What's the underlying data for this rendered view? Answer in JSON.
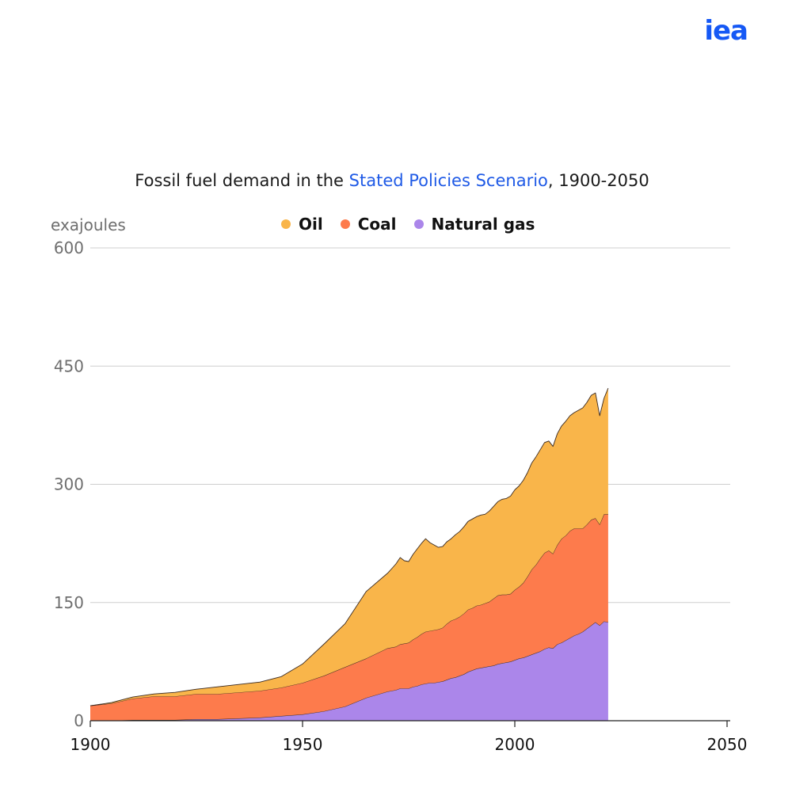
{
  "logo": {
    "text": "iea"
  },
  "header": {
    "title_prefix": "Fossil fuel demand in the ",
    "title_highlight": "Stated Policies Scenario",
    "title_suffix": ", 1900-2050"
  },
  "colors": {
    "oil": "#f9b54a",
    "coal": "#fd7b4c",
    "natural_gas": "#ab86ea",
    "highlight": "#1f5ae6",
    "logo": "#1558f5"
  },
  "chart_data": {
    "type": "area",
    "stacked": true,
    "title": "Fossil fuel demand in the Stated Policies Scenario, 1900-2050",
    "ylabel": "exajoules",
    "xlim": [
      1900,
      2050
    ],
    "ylim": [
      0,
      600
    ],
    "y_ticks": [
      0,
      150,
      300,
      450,
      600
    ],
    "x_ticks": [
      1900,
      1950,
      2000,
      2050
    ],
    "legend_position": "top-center",
    "grid": "horizontal",
    "x": [
      1900,
      1905,
      1910,
      1915,
      1920,
      1925,
      1930,
      1935,
      1940,
      1945,
      1950,
      1955,
      1960,
      1965,
      1970,
      1971,
      1972,
      1973,
      1974,
      1975,
      1976,
      1977,
      1978,
      1979,
      1980,
      1981,
      1982,
      1983,
      1984,
      1985,
      1986,
      1987,
      1988,
      1989,
      1990,
      1991,
      1992,
      1993,
      1994,
      1995,
      1996,
      1997,
      1998,
      1999,
      2000,
      2001,
      2002,
      2003,
      2004,
      2005,
      2006,
      2007,
      2008,
      2009,
      2010,
      2011,
      2012,
      2013,
      2014,
      2015,
      2016,
      2017,
      2018,
      2019,
      2020,
      2021,
      2022
    ],
    "series": [
      {
        "name": "Natural gas",
        "values": [
          0,
          0,
          1,
          1,
          1,
          2,
          2,
          3,
          4,
          6,
          8,
          12,
          18,
          29,
          37,
          38,
          39,
          41,
          41,
          41,
          43,
          44,
          46,
          47,
          48,
          48,
          49,
          50,
          52,
          54,
          55,
          57,
          59,
          62,
          64,
          66,
          67,
          68,
          69,
          70,
          72,
          73,
          74,
          75,
          77,
          79,
          80,
          82,
          84,
          86,
          88,
          91,
          93,
          92,
          97,
          99,
          102,
          105,
          108,
          110,
          113,
          117,
          121,
          125,
          121,
          126,
          125
        ]
      },
      {
        "name": "Coal",
        "values": [
          19,
          22,
          27,
          30,
          30,
          32,
          32,
          33,
          34,
          36,
          40,
          45,
          50,
          50,
          55,
          55,
          55,
          56,
          57,
          58,
          60,
          62,
          64,
          66,
          66,
          67,
          67,
          68,
          71,
          73,
          74,
          75,
          77,
          79,
          79,
          80,
          80,
          81,
          82,
          85,
          87,
          87,
          86,
          86,
          89,
          91,
          95,
          101,
          108,
          112,
          118,
          122,
          123,
          120,
          126,
          132,
          133,
          136,
          136,
          134,
          131,
          132,
          134,
          132,
          128,
          136,
          137
        ]
      },
      {
        "name": "Oil",
        "values": [
          0,
          1,
          2,
          3,
          5,
          6,
          9,
          10,
          11,
          14,
          24,
          40,
          55,
          85,
          95,
          100,
          105,
          110,
          105,
          103,
          108,
          112,
          115,
          118,
          112,
          108,
          104,
          103,
          104,
          104,
          107,
          108,
          110,
          112,
          113,
          113,
          114,
          113,
          115,
          117,
          119,
          121,
          122,
          124,
          127,
          128,
          130,
          132,
          135,
          137,
          138,
          140,
          139,
          136,
          141,
          143,
          145,
          146,
          147,
          150,
          153,
          155,
          158,
          159,
          138,
          147,
          160
        ]
      }
    ]
  }
}
